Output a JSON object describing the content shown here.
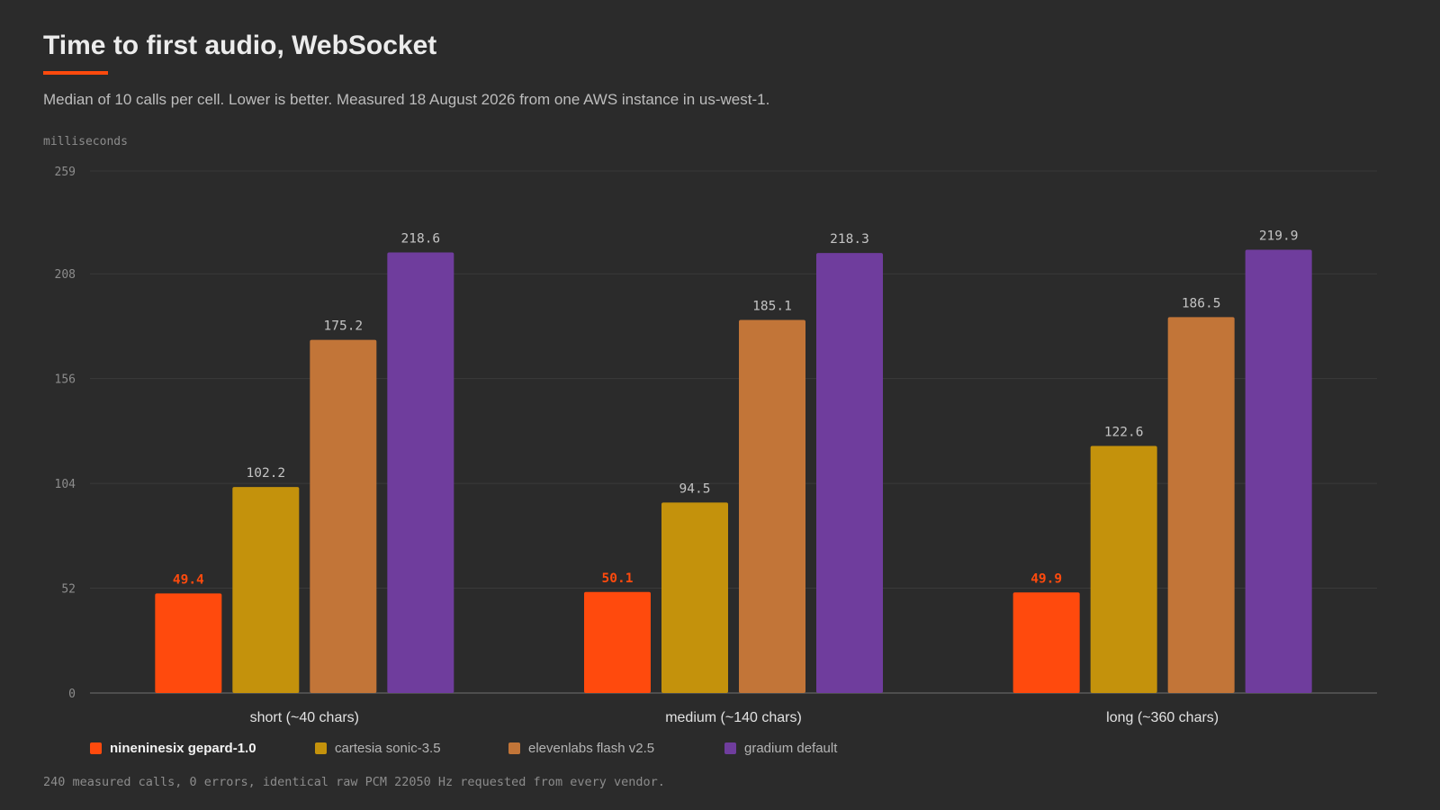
{
  "colors": {
    "background": "#2b2b2b",
    "accent": "#ff4a0d",
    "gridline": "#3a3a3a",
    "axis": "#5a5a5a",
    "tick_text": "#8c8c8c",
    "value_text": "#c4c4c4"
  },
  "footnote": "240 measured calls, 0 errors, identical raw PCM 22050 Hz requested from every vendor.",
  "chart_data": {
    "type": "bar",
    "title": "Time to first audio, WebSocket",
    "subtitle": "Median of 10 calls per cell. Lower is better. Measured 18 August 2026 from one AWS instance in us-west-1.",
    "ylabel": "milliseconds",
    "xlabel": "",
    "ylim": [
      0,
      259
    ],
    "yticks": [
      0,
      52,
      104,
      156,
      208,
      259
    ],
    "grid": true,
    "legend_position": "bottom-left",
    "categories": [
      "short (~40 chars)",
      "medium (~140 chars)",
      "long (~360 chars)"
    ],
    "series": [
      {
        "name": "nineninesix gepard-1.0",
        "color": "#ff4a0d",
        "highlight": true,
        "values": [
          49.4,
          50.1,
          49.9
        ]
      },
      {
        "name": "cartesia sonic-3.5",
        "color": "#c4920c",
        "highlight": false,
        "values": [
          102.2,
          94.5,
          122.6
        ]
      },
      {
        "name": "elevenlabs flash v2.5",
        "color": "#c27538",
        "highlight": false,
        "values": [
          175.2,
          185.1,
          186.5
        ]
      },
      {
        "name": "gradium default",
        "color": "#6f3d9d",
        "highlight": false,
        "values": [
          218.6,
          218.3,
          219.9
        ]
      }
    ]
  }
}
